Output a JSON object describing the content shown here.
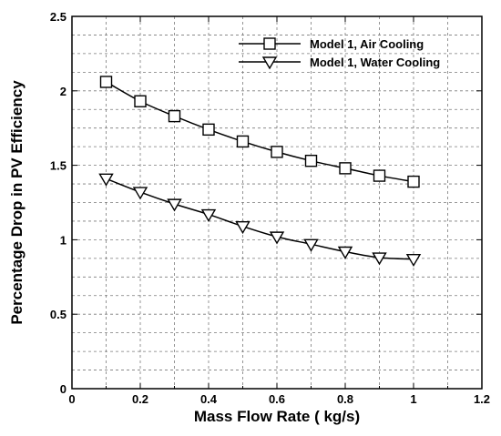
{
  "chart_data": {
    "type": "line",
    "title": "",
    "xlabel": "Mass Flow Rate ( kg/s)",
    "ylabel": "Percentage Drop in PV Efficiency",
    "xlim": [
      0,
      1.2
    ],
    "ylim": [
      0,
      2.5
    ],
    "x_ticks": [
      0,
      0.2,
      0.4,
      0.6,
      0.8,
      1,
      1.2
    ],
    "x_tick_labels": [
      "0",
      "0.2",
      "0.4",
      "0.6",
      "0.8",
      "1",
      "1.2"
    ],
    "y_ticks": [
      0,
      0.5,
      1,
      1.5,
      2,
      2.5
    ],
    "y_tick_labels": [
      "0",
      "0.5",
      "1",
      "1.5",
      "2",
      "2.5"
    ],
    "grid": true,
    "grid_style": "dashed",
    "grid_minor_x": 0.1,
    "grid_minor_y": 0.125,
    "legend_position": "top-right",
    "x": [
      0.1,
      0.2,
      0.3,
      0.4,
      0.5,
      0.6,
      0.7,
      0.8,
      0.9,
      1.0
    ],
    "series": [
      {
        "name": "Model 1, Air Cooling",
        "marker": "square",
        "values": [
          2.06,
          1.93,
          1.83,
          1.74,
          1.66,
          1.59,
          1.53,
          1.48,
          1.43,
          1.39
        ]
      },
      {
        "name": "Model 1, Water Cooling",
        "marker": "triangle-down",
        "values": [
          1.41,
          1.32,
          1.24,
          1.17,
          1.09,
          1.02,
          0.97,
          0.92,
          0.88,
          0.87
        ]
      }
    ]
  }
}
